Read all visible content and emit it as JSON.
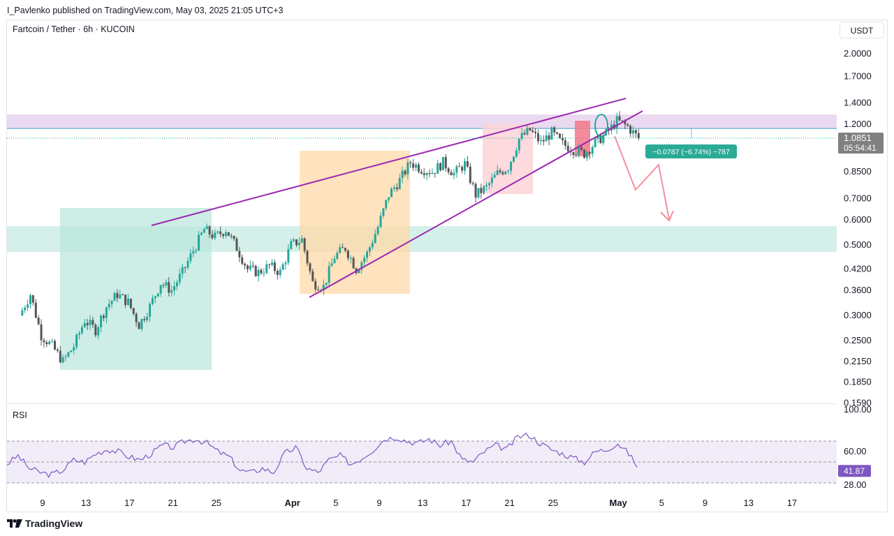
{
  "header": {
    "published": "I_Pavlenko published on TradingView.com, May 03, 2025 21:05 UTC+3"
  },
  "symbol": {
    "title": "Fartcoin / Tether · 6h · KUCOIN"
  },
  "currency_button": "USDT",
  "price_badge": {
    "price": "1.0851",
    "countdown": "05:54:41",
    "color": "#808080"
  },
  "change_label": {
    "text": "−0.0787 (−6.74%) −787",
    "color": "#2bab96"
  },
  "rsi": {
    "label": "RSI",
    "value": "41.87",
    "color": "#7e57c2"
  },
  "footer": {
    "brand": "TradingView"
  },
  "colors": {
    "candle_up": "#26a69a",
    "candle_down": "#555555",
    "wedge_line": "#9c27b0",
    "arrow": "#f48fa0",
    "zone_purple": "#e8d6f0",
    "zone_teal": "#b9e6dc",
    "zone_orange": "#ffd9a8",
    "zone_pink": "#fbd4d8",
    "zone_red": "#f2778a"
  },
  "chart_data": {
    "type": "candlestick",
    "scale": "log",
    "y_axis_ticks": [
      "2.0000",
      "1.7000",
      "1.4000",
      "1.2000",
      "0.8500",
      "0.7000",
      "0.6000",
      "0.5000",
      "0.4200",
      "0.3600",
      "0.3000",
      "0.2500",
      "0.2150",
      "0.1850",
      "0.1590"
    ],
    "x_axis_ticks": [
      "9",
      "13",
      "17",
      "21",
      "25",
      "Apr",
      "5",
      "9",
      "13",
      "17",
      "21",
      "25",
      "May",
      "5",
      "9",
      "13",
      "17"
    ],
    "rsi_axis_ticks": [
      "100.00",
      "60.00",
      "28.00"
    ],
    "price_path": [
      {
        "x": "Mar 7",
        "y": 0.3
      },
      {
        "x": "Mar 8",
        "y": 0.35
      },
      {
        "x": "Mar 9",
        "y": 0.26
      },
      {
        "x": "Mar 10",
        "y": 0.24
      },
      {
        "x": "Mar 11",
        "y": 0.215
      },
      {
        "x": "Mar 12",
        "y": 0.24
      },
      {
        "x": "Mar 13",
        "y": 0.29
      },
      {
        "x": "Mar 14",
        "y": 0.27
      },
      {
        "x": "Mar 15",
        "y": 0.32
      },
      {
        "x": "Mar 16",
        "y": 0.35
      },
      {
        "x": "Mar 17",
        "y": 0.33
      },
      {
        "x": "Mar 18",
        "y": 0.28
      },
      {
        "x": "Mar 19",
        "y": 0.32
      },
      {
        "x": "Mar 20",
        "y": 0.38
      },
      {
        "x": "Mar 21",
        "y": 0.36
      },
      {
        "x": "Mar 22",
        "y": 0.41
      },
      {
        "x": "Mar 23",
        "y": 0.48
      },
      {
        "x": "Mar 24",
        "y": 0.56
      },
      {
        "x": "Mar 25",
        "y": 0.53
      },
      {
        "x": "Mar 26",
        "y": 0.56
      },
      {
        "x": "Mar 27",
        "y": 0.49
      },
      {
        "x": "Mar 28",
        "y": 0.42
      },
      {
        "x": "Mar 29",
        "y": 0.41
      },
      {
        "x": "Mar 30",
        "y": 0.43
      },
      {
        "x": "Mar 31",
        "y": 0.41
      },
      {
        "x": "Apr 1",
        "y": 0.5
      },
      {
        "x": "Apr 2",
        "y": 0.52
      },
      {
        "x": "Apr 3",
        "y": 0.38
      },
      {
        "x": "Apr 4",
        "y": 0.37
      },
      {
        "x": "Apr 5",
        "y": 0.46
      },
      {
        "x": "Apr 6",
        "y": 0.49
      },
      {
        "x": "Apr 7",
        "y": 0.42
      },
      {
        "x": "Apr 8",
        "y": 0.47
      },
      {
        "x": "Apr 9",
        "y": 0.57
      },
      {
        "x": "Apr 10",
        "y": 0.72
      },
      {
        "x": "Apr 11",
        "y": 0.8
      },
      {
        "x": "Apr 12",
        "y": 0.91
      },
      {
        "x": "Apr 13",
        "y": 0.87
      },
      {
        "x": "Apr 14",
        "y": 0.85
      },
      {
        "x": "Apr 15",
        "y": 0.91
      },
      {
        "x": "Apr 16",
        "y": 0.84
      },
      {
        "x": "Apr 17",
        "y": 0.9
      },
      {
        "x": "Apr 18",
        "y": 0.72
      },
      {
        "x": "Apr 19",
        "y": 0.76
      },
      {
        "x": "Apr 20",
        "y": 0.84
      },
      {
        "x": "Apr 21",
        "y": 0.88
      },
      {
        "x": "Apr 22",
        "y": 1.08
      },
      {
        "x": "Apr 23",
        "y": 1.15
      },
      {
        "x": "Apr 24",
        "y": 1.05
      },
      {
        "x": "Apr 25",
        "y": 1.13
      },
      {
        "x": "Apr 26",
        "y": 1.04
      },
      {
        "x": "Apr 27",
        "y": 1.0
      },
      {
        "x": "Apr 28",
        "y": 0.97
      },
      {
        "x": "Apr 29",
        "y": 1.05
      },
      {
        "x": "Apr 30",
        "y": 1.12
      },
      {
        "x": "May 1",
        "y": 1.23
      },
      {
        "x": "May 2",
        "y": 1.18
      },
      {
        "x": "May 3",
        "y": 1.085
      }
    ],
    "rsi_values": [
      48,
      56,
      44,
      40,
      38,
      42,
      52,
      50,
      58,
      62,
      60,
      55,
      52,
      58,
      66,
      64,
      70,
      72,
      68,
      60,
      55,
      42,
      40,
      44,
      40,
      58,
      64,
      44,
      40,
      52,
      56,
      48,
      54,
      62,
      72,
      74,
      70,
      68,
      72,
      66,
      70,
      52,
      50,
      60,
      66,
      62,
      74,
      76,
      68,
      62,
      58,
      54,
      50,
      60,
      62,
      68,
      58,
      42
    ],
    "rsi_range": [
      28,
      100
    ],
    "current_price": 1.0851,
    "current_rsi": 41.87
  }
}
